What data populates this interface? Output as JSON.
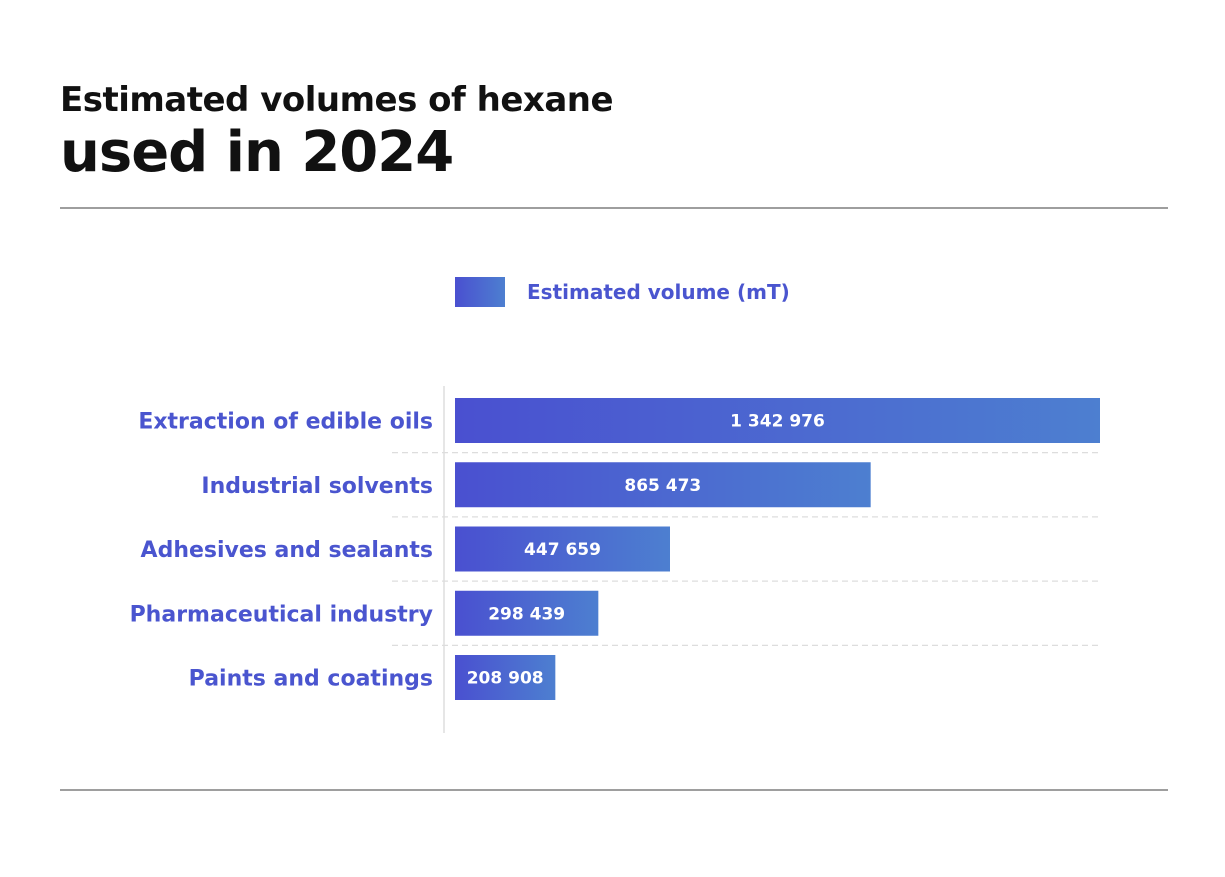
{
  "title": {
    "line1": "Estimated volumes of hexane",
    "line2": "used in 2024"
  },
  "colors": {
    "accent": "#4a55cf",
    "bar_start": "#4a50d0",
    "bar_end": "#4d7fd0",
    "text_dark": "#111111",
    "rule": "#9e9e9e",
    "gridline": "#dddddd"
  },
  "chart_data": {
    "type": "bar",
    "orientation": "horizontal",
    "legend": {
      "label": "Estimated volume (mT)",
      "placement": "top-center"
    },
    "categories": [
      "Extraction of edible oils",
      "Industrial solvents",
      "Adhesives and sealants",
      "Pharmaceutical industry",
      "Paints and coatings"
    ],
    "series": [
      {
        "name": "Estimated volume (mT)",
        "values": [
          1342976,
          865473,
          447659,
          298439,
          208908
        ],
        "value_labels": [
          "1 342 976",
          "865 473",
          "447 659",
          "298 439",
          "208 908"
        ]
      }
    ],
    "xlim": [
      0,
      1342976
    ],
    "grid": "horizontal-dashed"
  }
}
